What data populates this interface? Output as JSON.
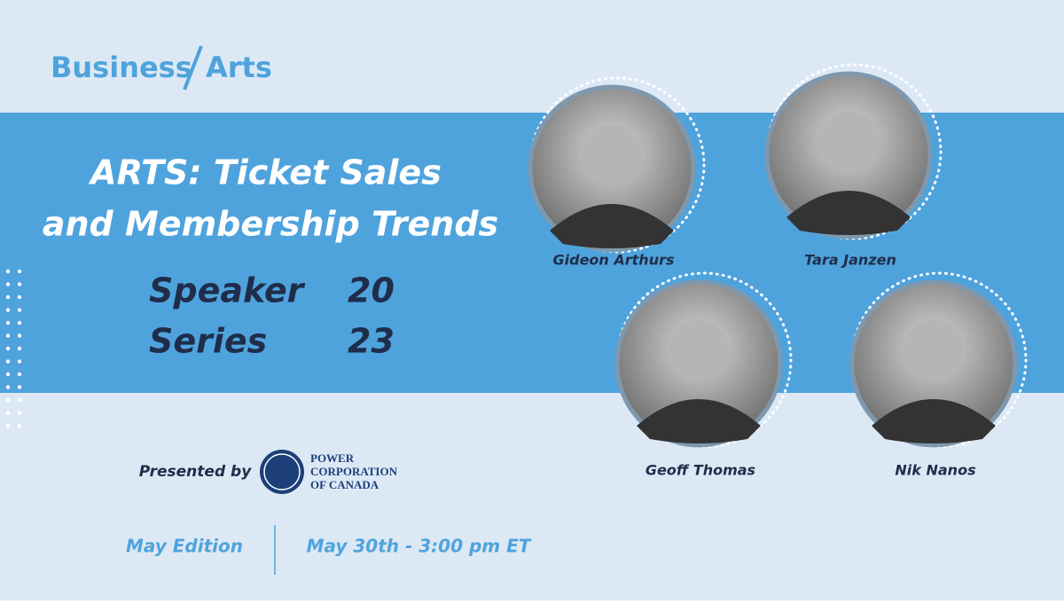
{
  "logo": {
    "left": "Business",
    "right": "Arts"
  },
  "title": {
    "line1": "ARTS: Ticket Sales",
    "line2": "and Membership Trends"
  },
  "series": {
    "word1": "Speaker",
    "number1": "20",
    "word2": "Series",
    "number2": "23"
  },
  "speakers": [
    {
      "name": "Gideon Arthurs"
    },
    {
      "name": "Tara Janzen"
    },
    {
      "name": "Geoff Thomas"
    },
    {
      "name": "Nik Nanos"
    }
  ],
  "sponsor": {
    "label": "Presented by",
    "line1": "POWER",
    "line2": "CORPORATION",
    "line3": "OF CANADA"
  },
  "footer": {
    "edition": "May Edition",
    "datetime": "May 30th - 3:00 pm ET"
  }
}
